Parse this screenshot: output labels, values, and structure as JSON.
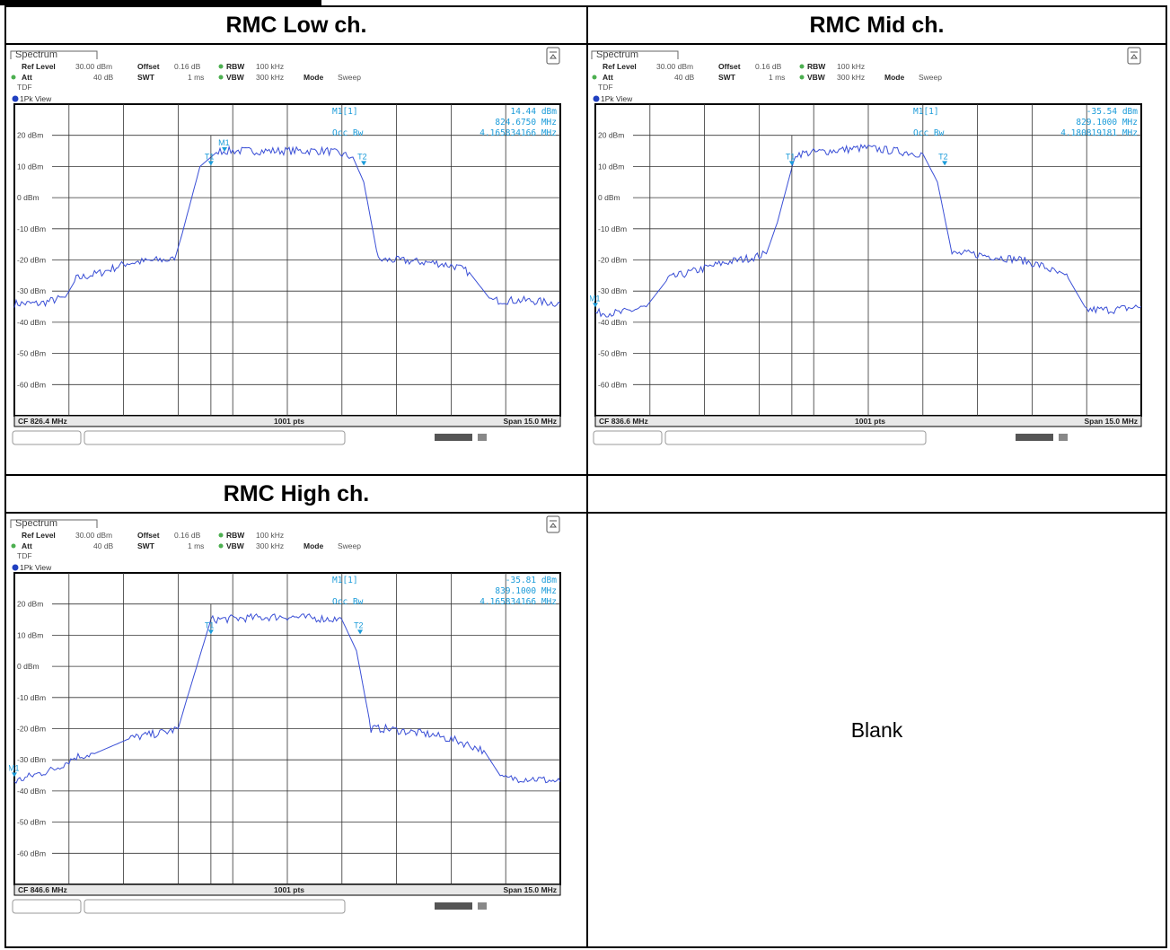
{
  "colors": {
    "trace": "#3a4fd6",
    "marker": "#1a9bd9",
    "grid": "#333333",
    "frame": "#000000"
  },
  "panels": [
    {
      "title": "RMC Low ch.",
      "tab": "Spectrum",
      "settings": {
        "ref_level_label": "Ref Level",
        "ref_level": "30.00 dBm",
        "offset_label": "Offset",
        "offset": "0.16 dB",
        "rbw_label": "RBW",
        "rbw": "100 kHz",
        "att_label": "Att",
        "att": "40 dB",
        "swt_label": "SWT",
        "swt": "1 ms",
        "vbw_label": "VBW",
        "vbw": "300 kHz",
        "mode_label": "Mode",
        "mode": "Sweep",
        "tdf": "TDF"
      },
      "view_label": "1Pk View",
      "marker": {
        "label": "M1[1]",
        "level": "14.44 dBm",
        "freq": "824.6750 MHz",
        "occ_label": "Occ Bw",
        "occ_bw": "4.165834166 MHz"
      },
      "footer": {
        "cf": "CF 826.4 MHz",
        "pts": "1001 pts",
        "span": "Span 15.0 MHz"
      }
    },
    {
      "title": "RMC Mid ch.",
      "tab": "Spectrum",
      "settings": {
        "ref_level_label": "Ref Level",
        "ref_level": "30.00 dBm",
        "offset_label": "Offset",
        "offset": "0.16 dB",
        "rbw_label": "RBW",
        "rbw": "100 kHz",
        "att_label": "Att",
        "att": "40 dB",
        "swt_label": "SWT",
        "swt": "1 ms",
        "vbw_label": "VBW",
        "vbw": "300 kHz",
        "mode_label": "Mode",
        "mode": "Sweep",
        "tdf": "TDF"
      },
      "view_label": "1Pk View",
      "marker": {
        "label": "M1[1]",
        "level": "-35.54 dBm",
        "freq": "829.1000 MHz",
        "occ_label": "Occ Bw",
        "occ_bw": "4.180819181 MHz"
      },
      "footer": {
        "cf": "CF 836.6 MHz",
        "pts": "1001 pts",
        "span": "Span 15.0 MHz"
      }
    },
    {
      "title": "RMC High ch.",
      "tab": "Spectrum",
      "settings": {
        "ref_level_label": "Ref Level",
        "ref_level": "30.00 dBm",
        "offset_label": "Offset",
        "offset": "0.16 dB",
        "rbw_label": "RBW",
        "rbw": "100 kHz",
        "att_label": "Att",
        "att": "40 dB",
        "swt_label": "SWT",
        "swt": "1 ms",
        "vbw_label": "VBW",
        "vbw": "300 kHz",
        "mode_label": "Mode",
        "mode": "Sweep",
        "tdf": "TDF"
      },
      "view_label": "1Pk View",
      "marker": {
        "label": "M1[1]",
        "level": "-35.81 dBm",
        "freq": "839.1000 MHz",
        "occ_label": "Occ Bw",
        "occ_bw": "4.165834166 MHz"
      },
      "footer": {
        "cf": "CF 846.6 MHz",
        "pts": "1001 pts",
        "span": "Span 15.0 MHz"
      }
    }
  ],
  "blank_header": "",
  "blank_text": "Blank",
  "chart_data": [
    {
      "type": "line",
      "title": "RMC Low ch.",
      "xlabel": "",
      "ylabel": "",
      "y_ticks": [
        "20 dBm",
        "10 dBm",
        "0 dBm",
        "-10 dBm",
        "-20 dBm",
        "-30 dBm",
        "-40 dBm",
        "-50 dBm",
        "-60 dBm"
      ],
      "xlim_mhz": [
        818.9,
        833.9
      ],
      "ylim_dbm": [
        -70,
        30
      ],
      "grid": true,
      "series": [
        {
          "x_mhz": [
            818.9,
            819.6,
            820.3,
            820.6,
            821.3,
            822.0,
            822.9,
            823.3,
            823.5,
            824.0,
            824.5,
            826.0,
            827.5,
            828.2,
            828.5,
            828.9,
            829.3,
            830.5,
            831.0,
            831.4,
            832.0,
            833.0,
            833.9
          ],
          "y_dbm": [
            -34,
            -34,
            -32,
            -26,
            -24,
            -21,
            -20,
            -20,
            -12,
            10,
            15,
            15,
            15,
            13,
            5,
            -20,
            -20,
            -21,
            -22,
            -24,
            -33,
            -33,
            -34
          ]
        }
      ],
      "markers": [
        {
          "name": "M1",
          "x_mhz": 824.675,
          "y_dbm": 14.44
        },
        {
          "name": "T1",
          "x_mhz": 824.3,
          "y_dbm": 10
        },
        {
          "name": "T2",
          "x_mhz": 828.5,
          "y_dbm": 10
        }
      ],
      "occ_bw_mhz": 4.165834166
    },
    {
      "type": "line",
      "title": "RMC Mid ch.",
      "xlabel": "",
      "ylabel": "",
      "y_ticks": [
        "20 dBm",
        "10 dBm",
        "0 dBm",
        "-10 dBm",
        "-20 dBm",
        "-30 dBm",
        "-40 dBm",
        "-50 dBm",
        "-60 dBm"
      ],
      "xlim_mhz": [
        829.1,
        844.1
      ],
      "ylim_dbm": [
        -70,
        30
      ],
      "grid": true,
      "series": [
        {
          "x_mhz": [
            829.1,
            829.8,
            830.5,
            831.1,
            831.7,
            832.6,
            833.5,
            833.8,
            834.1,
            834.6,
            836.5,
            838.1,
            838.5,
            838.9,
            839.4,
            840.8,
            841.4,
            842.1,
            842.6,
            843.3,
            844.1
          ],
          "y_dbm": [
            -37,
            -37,
            -35,
            -26,
            -24,
            -21,
            -19,
            -18,
            -8,
            14,
            16,
            14,
            5,
            -18,
            -18,
            -20,
            -22,
            -26,
            -36,
            -36,
            -35
          ]
        }
      ],
      "markers": [
        {
          "name": "M1",
          "x_mhz": 829.1,
          "y_dbm": -35.54
        },
        {
          "name": "T1",
          "x_mhz": 834.5,
          "y_dbm": 10
        },
        {
          "name": "T2",
          "x_mhz": 838.7,
          "y_dbm": 10
        }
      ],
      "occ_bw_mhz": 4.180819181
    },
    {
      "type": "line",
      "title": "RMC High ch.",
      "xlabel": "",
      "ylabel": "",
      "y_ticks": [
        "20 dBm",
        "10 dBm",
        "0 dBm",
        "-10 dBm",
        "-20 dBm",
        "-30 dBm",
        "-40 dBm",
        "-50 dBm",
        "-60 dBm"
      ],
      "xlim_mhz": [
        839.1,
        854.1
      ],
      "ylim_dbm": [
        -70,
        30
      ],
      "grid": true,
      "series": [
        {
          "x_mhz": [
            839.1,
            839.6,
            840.2,
            840.8,
            841.3,
            842.3,
            843.3,
            843.6,
            843.8,
            844.5,
            846.5,
            848.1,
            848.5,
            848.9,
            849.3,
            850.6,
            851.3,
            852.0,
            852.5,
            853.3,
            854.1
          ],
          "y_dbm": [
            -37,
            -35,
            -33,
            -29,
            -28,
            -23,
            -21,
            -20,
            -12,
            15,
            16,
            15,
            5,
            -20,
            -20,
            -22,
            -24,
            -27,
            -36,
            -36,
            -37
          ]
        }
      ],
      "markers": [
        {
          "name": "M1",
          "x_mhz": 839.1,
          "y_dbm": -35.81
        },
        {
          "name": "T1",
          "x_mhz": 844.5,
          "y_dbm": 10
        },
        {
          "name": "T2",
          "x_mhz": 848.6,
          "y_dbm": 10
        }
      ],
      "occ_bw_mhz": 4.165834166
    }
  ]
}
